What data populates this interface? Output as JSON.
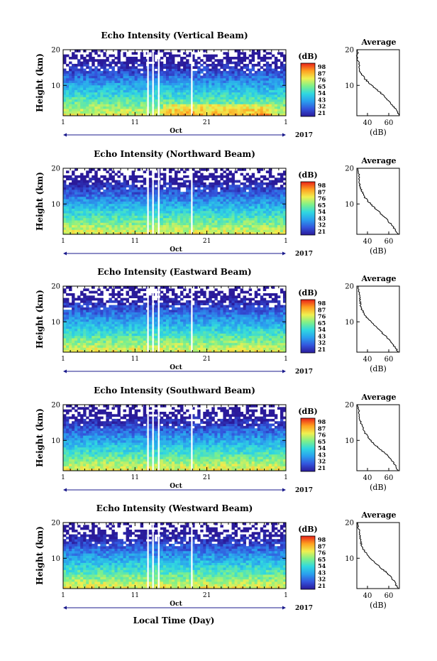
{
  "figure": {
    "xlabel": "Local Time (Day)",
    "month": "Oct",
    "year": "2017",
    "x_ticks": [
      "1",
      "11",
      "21",
      "1"
    ],
    "y_ticks": [
      "20",
      "10"
    ],
    "ylabel": "Height (km)",
    "colorbar_unit": "(dB)",
    "colorbar_ticks": [
      "98",
      "87",
      "76",
      "65",
      "54",
      "43",
      "32",
      "21"
    ],
    "avg_title": "Average",
    "avg_xlabel": "(dB)",
    "avg_x_ticks": [
      "40",
      "60"
    ],
    "avg_y_ticks": [
      "20",
      "10"
    ]
  },
  "chart_data": [
    {
      "type": "heatmap",
      "title": "Echo Intensity (Vertical Beam)",
      "xlabel": "Local Time (Day)",
      "ylabel": "Height (km)",
      "x_range": [
        "2017-10-01",
        "2017-11-01"
      ],
      "ylim": [
        1.5,
        20
      ],
      "colorbar": {
        "unit": "dB",
        "range": [
          21,
          98
        ]
      },
      "data_gaps_days": [
        12.8,
        13.5,
        14.3,
        18.9
      ],
      "average_profile": {
        "xlabel": "(dB)",
        "xlim": [
          30,
          70
        ],
        "height_km": [
          2,
          4,
          6,
          8,
          10,
          12,
          14,
          16,
          18,
          20
        ],
        "echo_db": [
          69,
          65,
          59,
          52,
          44,
          37,
          33,
          32,
          30,
          31
        ]
      }
    },
    {
      "type": "heatmap",
      "title": "Echo Intensity (Northward Beam)",
      "xlabel": "Local Time (Day)",
      "ylabel": "Height (km)",
      "x_range": [
        "2017-10-01",
        "2017-11-01"
      ],
      "ylim": [
        1.5,
        20
      ],
      "colorbar": {
        "unit": "dB",
        "range": [
          21,
          98
        ]
      },
      "data_gaps_days": [
        12.8,
        13.5,
        14.3,
        18.9
      ],
      "average_profile": {
        "xlabel": "(dB)",
        "xlim": [
          30,
          70
        ],
        "height_km": [
          2,
          4,
          6,
          8,
          10,
          12,
          14,
          16,
          18,
          20
        ],
        "echo_db": [
          68,
          63,
          57,
          50,
          43,
          37,
          34,
          32,
          32,
          31
        ]
      }
    },
    {
      "type": "heatmap",
      "title": "Echo Intensity (Eastward Beam)",
      "xlabel": "Local Time (Day)",
      "ylabel": "Height (km)",
      "x_range": [
        "2017-10-01",
        "2017-11-01"
      ],
      "ylim": [
        1.5,
        20
      ],
      "colorbar": {
        "unit": "dB",
        "range": [
          21,
          98
        ]
      },
      "data_gaps_days": [
        12.8,
        13.5,
        14.3,
        18.9
      ],
      "average_profile": {
        "xlabel": "(dB)",
        "xlim": [
          30,
          70
        ],
        "height_km": [
          2,
          4,
          6,
          8,
          10,
          12,
          14,
          16,
          18,
          20
        ],
        "echo_db": [
          68,
          63,
          57,
          50,
          43,
          37,
          34,
          33,
          32,
          31
        ]
      }
    },
    {
      "type": "heatmap",
      "title": "Echo Intensity (Southward Beam)",
      "xlabel": "Local Time (Day)",
      "ylabel": "Height (km)",
      "x_range": [
        "2017-10-01",
        "2017-11-01"
      ],
      "ylim": [
        1.5,
        20
      ],
      "colorbar": {
        "unit": "dB",
        "range": [
          21,
          98
        ]
      },
      "data_gaps_days": [
        12.8,
        13.5,
        14.3,
        18.9
      ],
      "average_profile": {
        "xlabel": "(dB)",
        "xlim": [
          30,
          70
        ],
        "height_km": [
          2,
          4,
          6,
          8,
          10,
          12,
          14,
          16,
          18,
          20
        ],
        "echo_db": [
          68,
          64,
          58,
          50,
          43,
          38,
          35,
          33,
          32,
          31
        ]
      }
    },
    {
      "type": "heatmap",
      "title": "Echo Intensity (Westward Beam)",
      "xlabel": "Local Time (Day)",
      "ylabel": "Height (km)",
      "x_range": [
        "2017-10-01",
        "2017-11-01"
      ],
      "ylim": [
        1.5,
        20
      ],
      "colorbar": {
        "unit": "dB",
        "range": [
          21,
          98
        ]
      },
      "data_gaps_days": [
        12.8,
        13.5,
        14.3,
        18.9
      ],
      "average_profile": {
        "xlabel": "(dB)",
        "xlim": [
          30,
          70
        ],
        "height_km": [
          2,
          4,
          6,
          8,
          10,
          12,
          14,
          16,
          18,
          20
        ],
        "echo_db": [
          68,
          64,
          58,
          50,
          43,
          37,
          34,
          33,
          32,
          31
        ]
      }
    }
  ],
  "colors": {
    "colormap": [
      "#2a1a9a",
      "#3355dd",
      "#2aa0ee",
      "#30d8e0",
      "#7ef08a",
      "#f0f050",
      "#ffa020",
      "#e82018"
    ],
    "axis": "#000000",
    "date_axis": "#1a1a8c"
  }
}
